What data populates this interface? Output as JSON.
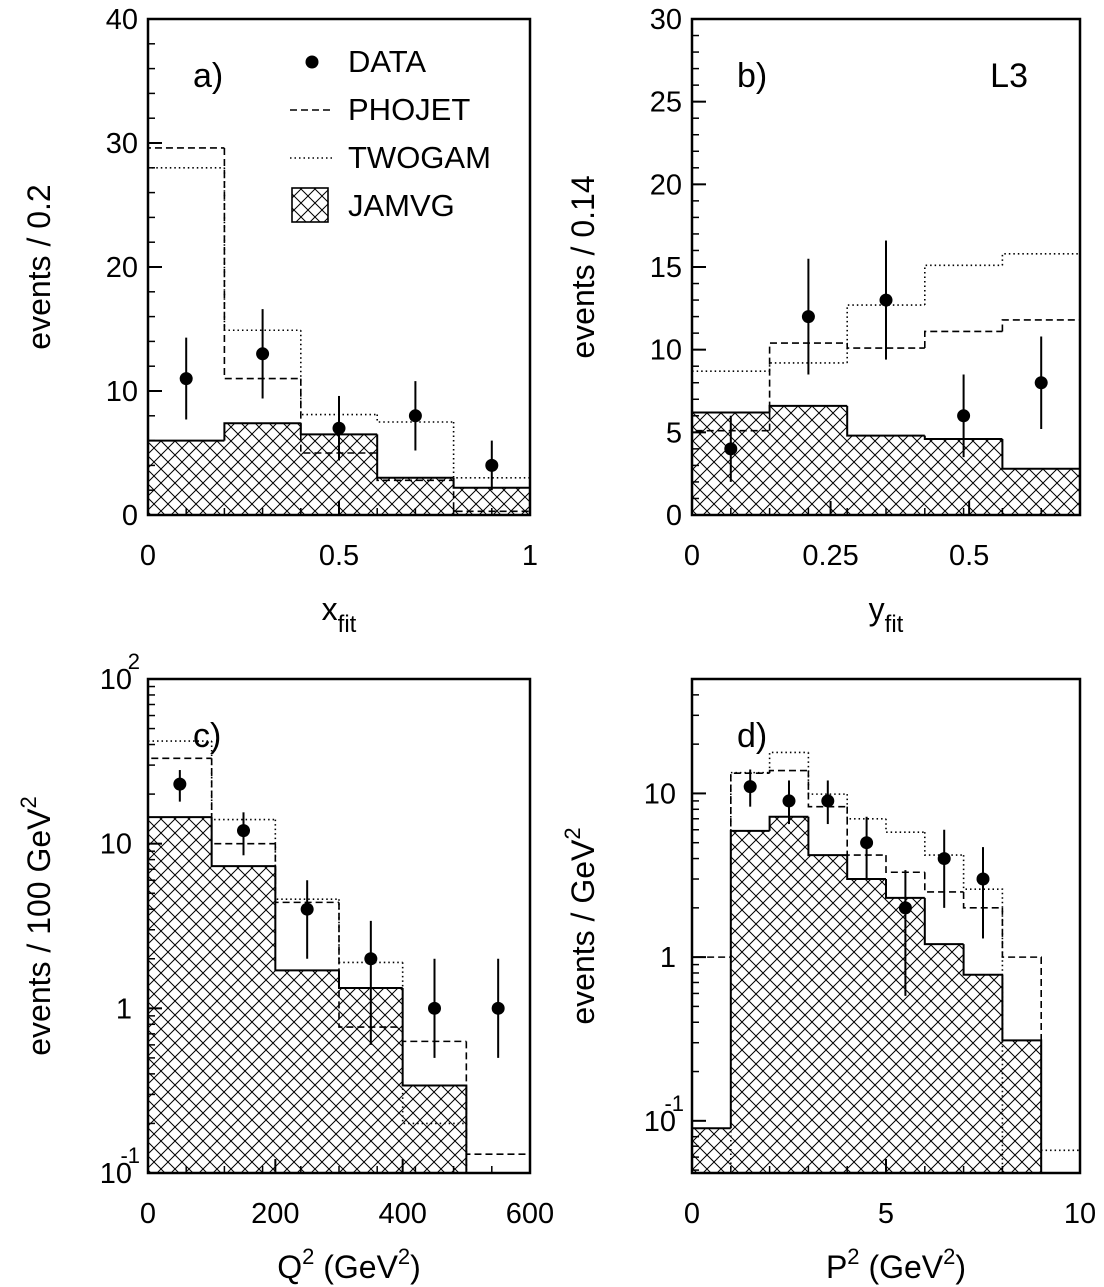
{
  "chart_data": [
    {
      "id": "a",
      "type": "histogram",
      "panel_label": "a)",
      "corner_label": "",
      "ylabel": "events / 0.2",
      "xlabel_main": "x",
      "xlabel_sub": "fit",
      "xlim": [
        0,
        1
      ],
      "ylim": [
        0,
        40
      ],
      "xticks": [
        {
          "v": 0,
          "label": "0"
        },
        {
          "v": 0.5,
          "label": "0.5"
        },
        {
          "v": 1,
          "label": "1"
        }
      ],
      "yticks": [
        {
          "v": 0,
          "label": "0"
        },
        {
          "v": 10,
          "label": "10"
        },
        {
          "v": 20,
          "label": "20"
        },
        {
          "v": 30,
          "label": "30"
        },
        {
          "v": 40,
          "label": "40"
        }
      ],
      "edges": [
        0,
        0.2,
        0.4,
        0.6,
        0.8,
        1.0
      ],
      "jamvg": [
        6.0,
        7.4,
        6.5,
        3.0,
        2.2
      ],
      "phojet": [
        29.6,
        11.0,
        5.0,
        2.8,
        0.3
      ],
      "twogam": [
        28.0,
        14.9,
        8.1,
        7.5,
        3.0
      ],
      "data": [
        {
          "x": 0.1,
          "y": 11,
          "lo": 7.7,
          "hi": 14.3
        },
        {
          "x": 0.3,
          "y": 13,
          "lo": 9.4,
          "hi": 16.6
        },
        {
          "x": 0.5,
          "y": 7,
          "lo": 4.4,
          "hi": 9.6
        },
        {
          "x": 0.7,
          "y": 8,
          "lo": 5.2,
          "hi": 10.8
        },
        {
          "x": 0.9,
          "y": 4,
          "lo": 2.0,
          "hi": 6.0
        }
      ]
    },
    {
      "id": "b",
      "type": "histogram",
      "panel_label": "b)",
      "corner_label": "L3",
      "ylabel": "events / 0.14",
      "xlabel_main": "y",
      "xlabel_sub": "fit",
      "xlim": [
        0,
        0.7
      ],
      "ylim": [
        0,
        30
      ],
      "xticks": [
        {
          "v": 0,
          "label": "0"
        },
        {
          "v": 0.25,
          "label": "0.25"
        },
        {
          "v": 0.5,
          "label": "0.5"
        }
      ],
      "yticks": [
        {
          "v": 0,
          "label": "0"
        },
        {
          "v": 5,
          "label": "5"
        },
        {
          "v": 10,
          "label": "10"
        },
        {
          "v": 15,
          "label": "15"
        },
        {
          "v": 20,
          "label": "20"
        },
        {
          "v": 25,
          "label": "25"
        },
        {
          "v": 30,
          "label": "30"
        }
      ],
      "edges": [
        0,
        0.14,
        0.28,
        0.42,
        0.56,
        0.7
      ],
      "jamvg": [
        6.2,
        6.6,
        4.8,
        4.6,
        2.8
      ],
      "phojet": [
        5.1,
        10.4,
        10.1,
        11.1,
        11.8
      ],
      "twogam": [
        8.7,
        9.2,
        12.7,
        15.1,
        15.8
      ],
      "data": [
        {
          "x": 0.07,
          "y": 4,
          "lo": 2.0,
          "hi": 6.0
        },
        {
          "x": 0.21,
          "y": 12,
          "lo": 8.5,
          "hi": 15.5
        },
        {
          "x": 0.35,
          "y": 13,
          "lo": 9.4,
          "hi": 16.6
        },
        {
          "x": 0.49,
          "y": 6,
          "lo": 3.5,
          "hi": 8.5
        },
        {
          "x": 0.63,
          "y": 8,
          "lo": 5.2,
          "hi": 10.8
        }
      ]
    },
    {
      "id": "c",
      "type": "histogram",
      "scale": "log",
      "panel_label": "c)",
      "corner_label": "",
      "ylabel_main": "events / 100 GeV",
      "ylabel_sup": "2",
      "xlabel_parts": [
        "Q",
        "2",
        " (GeV",
        "2",
        ")"
      ],
      "xlim": [
        0,
        600
      ],
      "ylim": [
        0.1,
        100
      ],
      "xticks": [
        {
          "v": 0,
          "label": "0"
        },
        {
          "v": 200,
          "label": "200"
        },
        {
          "v": 400,
          "label": "400"
        },
        {
          "v": 600,
          "label": "600"
        }
      ],
      "ydecades": [
        {
          "v": 0.1,
          "base": "10",
          "exp": "-1"
        },
        {
          "v": 1,
          "base": "1",
          "exp": ""
        },
        {
          "v": 10,
          "base": "10",
          "exp": ""
        },
        {
          "v": 100,
          "base": "10",
          "exp": "2"
        }
      ],
      "edges": [
        0,
        100,
        200,
        300,
        400,
        500,
        600
      ],
      "jamvg": [
        14.5,
        7.3,
        1.7,
        1.33,
        0.34,
        null
      ],
      "phojet": [
        33,
        10,
        4.4,
        0.77,
        0.63,
        0.13
      ],
      "twogam": [
        42,
        14,
        4.6,
        1.9,
        0.2,
        null
      ],
      "data": [
        {
          "x": 50,
          "y": 23,
          "lo": 18,
          "hi": 28
        },
        {
          "x": 150,
          "y": 12,
          "lo": 8.5,
          "hi": 15.5
        },
        {
          "x": 250,
          "y": 4,
          "lo": 2.0,
          "hi": 6.0
        },
        {
          "x": 350,
          "y": 2,
          "lo": 0.6,
          "hi": 3.4
        },
        {
          "x": 450,
          "y": 1,
          "lo": 0.5,
          "hi": 2.0
        },
        {
          "x": 550,
          "y": 1,
          "lo": 0.5,
          "hi": 2.0
        }
      ]
    },
    {
      "id": "d",
      "type": "histogram",
      "scale": "log",
      "panel_label": "d)",
      "corner_label": "",
      "ylabel_main": "events / GeV",
      "ylabel_sup": "2",
      "xlabel_parts": [
        "P",
        "2",
        " (GeV",
        "2",
        ")"
      ],
      "xlim": [
        0,
        10
      ],
      "ylim": [
        0.048,
        50
      ],
      "xticks": [
        {
          "v": 0,
          "label": "0"
        },
        {
          "v": 5,
          "label": "5"
        },
        {
          "v": 10,
          "label": "10"
        }
      ],
      "ydecades": [
        {
          "v": 0.1,
          "base": "10",
          "exp": "-1"
        },
        {
          "v": 1,
          "base": "1",
          "exp": ""
        },
        {
          "v": 10,
          "base": "10",
          "exp": ""
        }
      ],
      "edges": [
        0,
        1,
        2,
        3,
        4,
        5,
        6,
        7,
        8,
        9,
        10
      ],
      "jamvg": [
        0.09,
        5.9,
        7.2,
        4.2,
        3.0,
        2.3,
        1.2,
        0.78,
        0.31,
        null
      ],
      "phojet": [
        1.0,
        13.3,
        13.8,
        8.3,
        4.2,
        3.3,
        2.5,
        2.0,
        1.0,
        null
      ],
      "twogam": [
        null,
        13.4,
        17.8,
        9.9,
        7.0,
        5.8,
        4.2,
        2.6,
        null,
        0.066
      ],
      "data": [
        {
          "x": 1.5,
          "y": 11,
          "lo": 8.3,
          "hi": 14
        },
        {
          "x": 2.5,
          "y": 9,
          "lo": 6.5,
          "hi": 12
        },
        {
          "x": 3.5,
          "y": 9,
          "lo": 6.5,
          "hi": 12
        },
        {
          "x": 4.5,
          "y": 5,
          "lo": 3.0,
          "hi": 7.2
        },
        {
          "x": 5.5,
          "y": 2,
          "lo": 0.58,
          "hi": 3.4
        },
        {
          "x": 6.5,
          "y": 4,
          "lo": 2.0,
          "hi": 6.0
        },
        {
          "x": 7.5,
          "y": 3,
          "lo": 1.3,
          "hi": 4.7
        }
      ]
    }
  ],
  "legend": {
    "items": [
      {
        "key": "data",
        "label": "DATA"
      },
      {
        "key": "phojet",
        "label": "PHOJET"
      },
      {
        "key": "twogam",
        "label": "TWOGAM"
      },
      {
        "key": "jamvg",
        "label": "JAMVG"
      }
    ]
  }
}
